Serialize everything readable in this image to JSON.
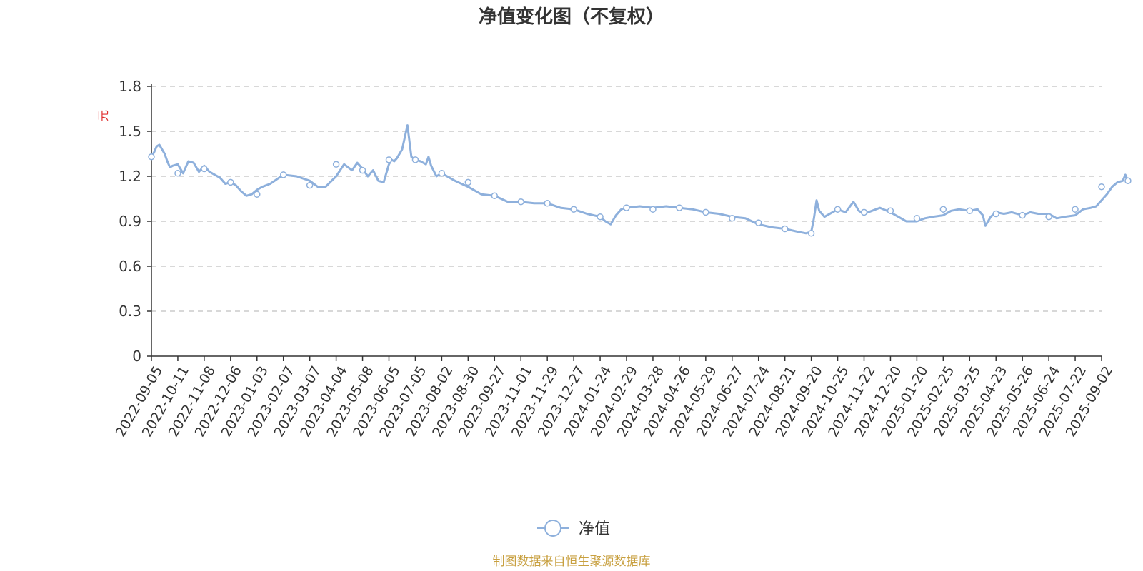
{
  "chart_data": {
    "type": "line",
    "title": "净值变化图（不复权）",
    "ylabel": "元",
    "ylim": [
      0,
      1.8
    ],
    "yticks": [
      "0",
      "0.3",
      "0.6",
      "0.9",
      "1.2",
      "1.5",
      "1.8"
    ],
    "grid": "horizontal dashed",
    "legend_position": "bottom-center",
    "source_note": "制图数据来自恒生聚源数据库",
    "x_tick_labels": [
      "2022-09-05",
      "2022-10-11",
      "2022-11-08",
      "2022-12-06",
      "2023-01-03",
      "2023-02-07",
      "2023-03-07",
      "2023-04-04",
      "2023-05-08",
      "2023-06-05",
      "2023-07-05",
      "2023-08-02",
      "2023-08-30",
      "2023-09-27",
      "2023-11-01",
      "2023-11-29",
      "2023-12-27",
      "2024-01-24",
      "2024-02-29",
      "2024-03-28",
      "2024-04-26",
      "2024-05-29",
      "2024-06-27",
      "2024-07-24",
      "2024-08-21",
      "2024-09-20",
      "2024-10-25",
      "2024-11-22",
      "2024-12-20",
      "2025-01-20",
      "2025-02-25",
      "2025-03-25",
      "2025-04-23",
      "2025-05-26",
      "2025-06-24",
      "2025-07-22",
      "2025-09-02"
    ],
    "series": [
      {
        "name": "净值",
        "color": "#8eb0dc",
        "x": [
          0,
          0.1,
          0.2,
          0.3,
          0.4,
          0.5,
          0.6,
          0.7,
          0.8,
          1,
          1.2,
          1.4,
          1.6,
          1.8,
          2,
          2.2,
          2.4,
          2.6,
          2.8,
          3,
          3.2,
          3.4,
          3.6,
          3.8,
          4,
          4.2,
          4.5,
          5,
          5.5,
          6,
          6.3,
          6.6,
          7,
          7.3,
          7.6,
          7.8,
          8,
          8.2,
          8.4,
          8.6,
          8.8,
          9,
          9.1,
          9.2,
          9.3,
          9.5,
          9.7,
          9.85,
          10,
          10.2,
          10.4,
          10.5,
          10.6,
          10.8,
          11,
          11.5,
          12,
          12.5,
          13,
          13.5,
          14,
          14.5,
          15,
          15.5,
          16,
          16.5,
          17,
          17.2,
          17.4,
          17.6,
          17.8,
          18,
          18.5,
          19,
          19.5,
          20,
          20.5,
          21,
          21.5,
          22,
          22.5,
          23,
          23.5,
          24,
          24.5,
          24.8,
          25,
          25.1,
          25.2,
          25.3,
          25.5,
          25.8,
          26,
          26.3,
          26.6,
          26.8,
          27,
          27.3,
          27.6,
          28,
          28.3,
          28.6,
          29,
          29.3,
          29.6,
          30,
          30.3,
          30.6,
          31,
          31.3,
          31.5,
          31.6,
          31.8,
          32,
          32.3,
          32.6,
          33,
          33.3,
          33.6,
          34,
          34.3,
          34.6,
          35,
          35.3,
          35.6,
          35.8,
          36,
          36.2,
          36.4,
          36.6,
          36.8,
          36.9,
          37
        ],
        "y": [
          1.33,
          1.36,
          1.4,
          1.41,
          1.38,
          1.35,
          1.3,
          1.26,
          1.27,
          1.28,
          1.22,
          1.3,
          1.29,
          1.23,
          1.27,
          1.23,
          1.21,
          1.19,
          1.15,
          1.16,
          1.14,
          1.1,
          1.07,
          1.08,
          1.11,
          1.13,
          1.15,
          1.21,
          1.2,
          1.17,
          1.13,
          1.13,
          1.2,
          1.28,
          1.24,
          1.29,
          1.25,
          1.2,
          1.24,
          1.17,
          1.16,
          1.28,
          1.31,
          1.3,
          1.32,
          1.38,
          1.54,
          1.33,
          1.31,
          1.3,
          1.28,
          1.33,
          1.27,
          1.2,
          1.22,
          1.17,
          1.13,
          1.08,
          1.07,
          1.03,
          1.03,
          1.02,
          1.02,
          0.99,
          0.98,
          0.95,
          0.93,
          0.9,
          0.88,
          0.94,
          0.98,
          0.99,
          1.0,
          0.99,
          1.0,
          0.99,
          0.98,
          0.96,
          0.95,
          0.93,
          0.92,
          0.88,
          0.86,
          0.85,
          0.83,
          0.82,
          0.83,
          0.92,
          1.04,
          0.97,
          0.93,
          0.96,
          0.98,
          0.96,
          1.03,
          0.97,
          0.95,
          0.97,
          0.99,
          0.96,
          0.93,
          0.9,
          0.9,
          0.92,
          0.93,
          0.94,
          0.97,
          0.98,
          0.97,
          0.98,
          0.94,
          0.87,
          0.93,
          0.96,
          0.95,
          0.96,
          0.94,
          0.96,
          0.95,
          0.95,
          0.92,
          0.93,
          0.94,
          0.98,
          0.99,
          1.0,
          1.04,
          1.08,
          1.13,
          1.16,
          1.17,
          1.21,
          1.17
        ]
      }
    ],
    "markers": [
      {
        "x": 0,
        "y": 1.33
      },
      {
        "x": 1,
        "y": 1.22
      },
      {
        "x": 2,
        "y": 1.25
      },
      {
        "x": 3,
        "y": 1.16
      },
      {
        "x": 4,
        "y": 1.08
      },
      {
        "x": 5,
        "y": 1.21
      },
      {
        "x": 6,
        "y": 1.14
      },
      {
        "x": 7,
        "y": 1.28
      },
      {
        "x": 8,
        "y": 1.24
      },
      {
        "x": 9,
        "y": 1.31
      },
      {
        "x": 10,
        "y": 1.31
      },
      {
        "x": 11,
        "y": 1.22
      },
      {
        "x": 12,
        "y": 1.16
      },
      {
        "x": 13,
        "y": 1.07
      },
      {
        "x": 14,
        "y": 1.03
      },
      {
        "x": 15,
        "y": 1.02
      },
      {
        "x": 16,
        "y": 0.98
      },
      {
        "x": 17,
        "y": 0.93
      },
      {
        "x": 18,
        "y": 0.99
      },
      {
        "x": 19,
        "y": 0.98
      },
      {
        "x": 20,
        "y": 0.99
      },
      {
        "x": 21,
        "y": 0.96
      },
      {
        "x": 22,
        "y": 0.92
      },
      {
        "x": 23,
        "y": 0.89
      },
      {
        "x": 24,
        "y": 0.85
      },
      {
        "x": 25,
        "y": 0.82
      },
      {
        "x": 26,
        "y": 0.98
      },
      {
        "x": 27,
        "y": 0.96
      },
      {
        "x": 28,
        "y": 0.97
      },
      {
        "x": 29,
        "y": 0.92
      },
      {
        "x": 30,
        "y": 0.98
      },
      {
        "x": 31,
        "y": 0.97
      },
      {
        "x": 32,
        "y": 0.95
      },
      {
        "x": 33,
        "y": 0.94
      },
      {
        "x": 34,
        "y": 0.93
      },
      {
        "x": 35,
        "y": 0.98
      },
      {
        "x": 36,
        "y": 1.13
      },
      {
        "x": 37,
        "y": 1.17
      }
    ]
  }
}
